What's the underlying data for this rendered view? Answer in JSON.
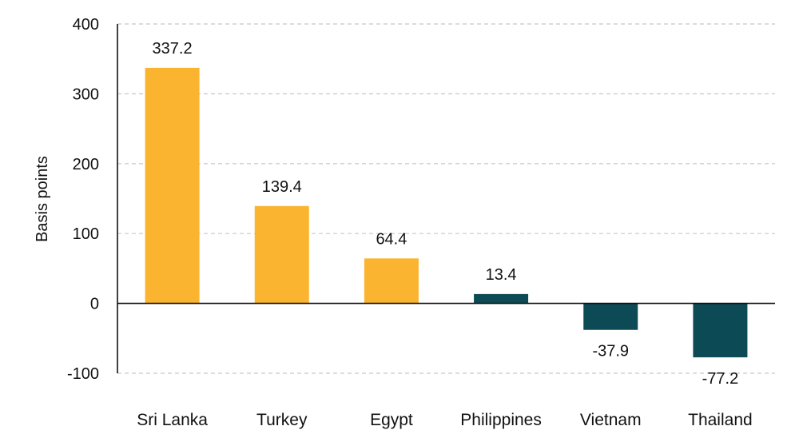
{
  "chart_data": {
    "type": "bar",
    "title": "",
    "xlabel": "",
    "ylabel": "Basis points",
    "ylim": [
      -100,
      400
    ],
    "yticks": [
      -100,
      0,
      100,
      200,
      300,
      400
    ],
    "grid": true,
    "legend": "none",
    "colors": {
      "positive": "#FBB42F",
      "negative": "#0C4A56",
      "grid": "#c8c8c8"
    },
    "categories": [
      "Sri Lanka",
      "Turkey",
      "Egypt",
      "Philippines",
      "Vietnam",
      "Thailand"
    ],
    "values": [
      337.2,
      139.4,
      64.4,
      13.4,
      -37.9,
      -77.2
    ],
    "value_labels": [
      "337.2",
      "139.4",
      "64.4",
      "13.4",
      "-37.9",
      "-77.2"
    ],
    "bar_colors": [
      "#FBB42F",
      "#FBB42F",
      "#FBB42F",
      "#0C4A56",
      "#0C4A56",
      "#0C4A56"
    ]
  }
}
